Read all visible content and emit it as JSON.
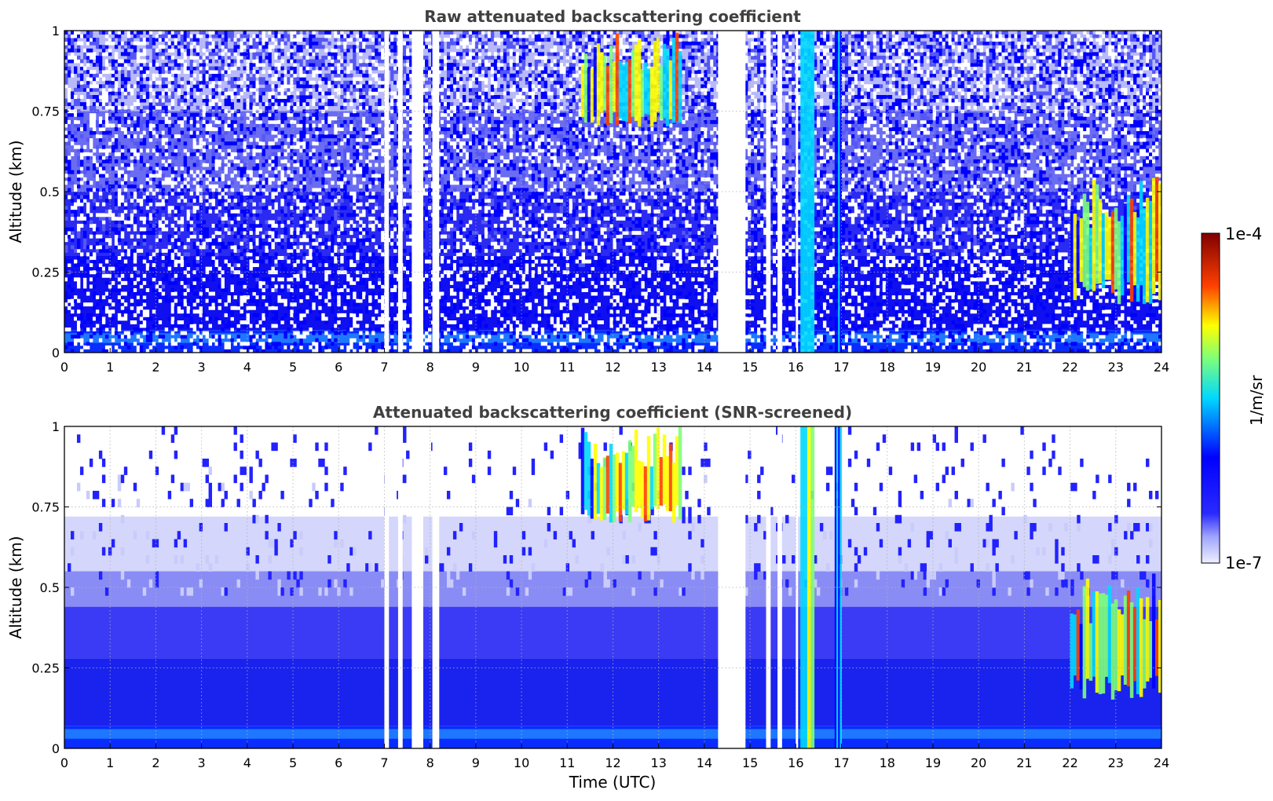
{
  "chart_data": [
    {
      "type": "heatmap",
      "title": "Raw attenuated backscattering coefficient",
      "xlabel": "",
      "ylabel": "Altitude (km)",
      "xlim": [
        0,
        24
      ],
      "ylim": [
        0,
        1
      ],
      "x_ticks": [
        "0",
        "1",
        "2",
        "3",
        "4",
        "5",
        "6",
        "7",
        "8",
        "9",
        "10",
        "11",
        "12",
        "13",
        "14",
        "15",
        "16",
        "17",
        "18",
        "19",
        "20",
        "21",
        "22",
        "23",
        "24"
      ],
      "y_ticks": [
        "0",
        "0.25",
        "0.5",
        "0.75",
        "1"
      ],
      "grid": true,
      "noise": "high",
      "features": [
        {
          "kind": "cloud",
          "t_start": 11.3,
          "t_end": 13.5,
          "alt_min": 0.7,
          "alt_max": 1.0,
          "level": "high"
        },
        {
          "kind": "plume",
          "t_start": 16.1,
          "t_end": 16.4,
          "alt_min": 0.0,
          "alt_max": 1.0,
          "level": "high"
        },
        {
          "kind": "plume",
          "t_start": 16.85,
          "t_end": 17.0,
          "alt_min": 0.0,
          "alt_max": 1.0,
          "level": "medium"
        },
        {
          "kind": "aerosol-layer",
          "t_start": 22.0,
          "t_end": 24.0,
          "alt_min": 0.15,
          "alt_max": 0.55,
          "level": "high"
        }
      ],
      "gaps": [
        [
          7.0,
          7.1
        ],
        [
          7.3,
          7.4
        ],
        [
          7.6,
          7.85
        ],
        [
          8.05,
          8.2
        ],
        [
          14.3,
          14.9
        ],
        [
          15.35,
          15.45
        ],
        [
          15.6,
          15.7
        ],
        [
          16.0,
          16.05
        ]
      ]
    },
    {
      "type": "heatmap",
      "title": "Attenuated backscattering coefficient (SNR-screened)",
      "xlabel": "Time (UTC)",
      "ylabel": "Altitude (km)",
      "xlim": [
        0,
        24
      ],
      "ylim": [
        0,
        1
      ],
      "x_ticks": [
        "0",
        "1",
        "2",
        "3",
        "4",
        "5",
        "6",
        "7",
        "8",
        "9",
        "10",
        "11",
        "12",
        "13",
        "14",
        "15",
        "16",
        "17",
        "18",
        "19",
        "20",
        "21",
        "22",
        "23",
        "24"
      ],
      "y_ticks": [
        "0",
        "0.25",
        "0.5",
        "0.75",
        "1"
      ],
      "grid": true,
      "noise": "screened",
      "features": [
        {
          "kind": "cloud",
          "t_start": 11.3,
          "t_end": 13.5,
          "alt_min": 0.7,
          "alt_max": 1.0,
          "level": "high"
        },
        {
          "kind": "plume",
          "t_start": 16.1,
          "t_end": 16.4,
          "alt_min": 0.0,
          "alt_max": 1.0,
          "level": "high"
        },
        {
          "kind": "plume",
          "t_start": 16.85,
          "t_end": 17.0,
          "alt_min": 0.0,
          "alt_max": 1.0,
          "level": "medium"
        },
        {
          "kind": "aerosol-layer",
          "t_start": 22.0,
          "t_end": 24.0,
          "alt_min": 0.15,
          "alt_max": 0.55,
          "level": "high"
        }
      ],
      "gaps": [
        [
          7.0,
          7.1
        ],
        [
          7.3,
          7.4
        ],
        [
          7.6,
          7.85
        ],
        [
          8.05,
          8.2
        ],
        [
          14.3,
          14.9
        ],
        [
          15.35,
          15.45
        ],
        [
          15.6,
          15.7
        ],
        [
          16.0,
          16.05
        ]
      ]
    }
  ],
  "colorbar": {
    "label": "1/m/sr",
    "max_label": "1e-4",
    "min_label": "1e-7",
    "colormap": "jet",
    "stops": [
      "#eef0ff",
      "#0000ff",
      "#00ffff",
      "#ffff00",
      "#ff0000",
      "#800000"
    ]
  }
}
